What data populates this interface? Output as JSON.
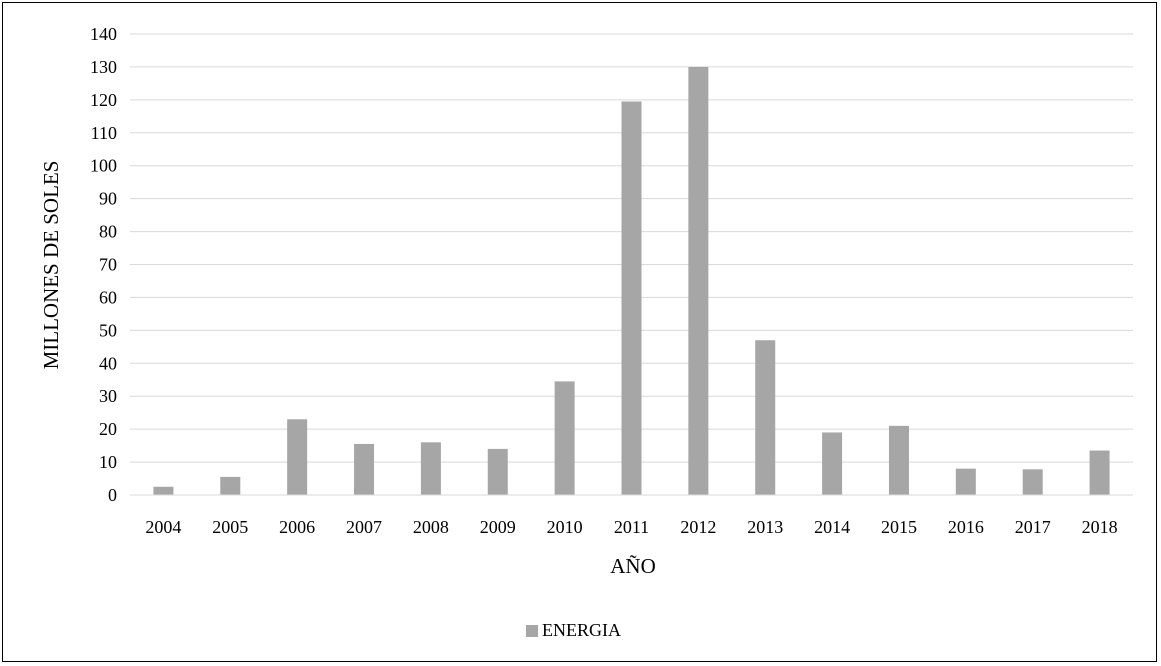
{
  "chart_data": {
    "type": "bar",
    "xlabel": "AÑO",
    "ylabel": "MILLONES DE SOLES",
    "ylim": [
      0,
      140
    ],
    "yticks": [
      "0",
      "10",
      "20",
      "30",
      "40",
      "50",
      "60",
      "70",
      "80",
      "90",
      "100",
      "110",
      "120",
      "130",
      "140"
    ],
    "categories": [
      "2004",
      "2005",
      "2006",
      "2007",
      "2008",
      "2009",
      "2010",
      "2011",
      "2012",
      "2013",
      "2014",
      "2015",
      "2016",
      "2017",
      "2018"
    ],
    "series": [
      {
        "name": "ENERGIA",
        "color": "#a6a6a6",
        "values": [
          2.5,
          5.5,
          23,
          15.5,
          16,
          14,
          34.5,
          119.5,
          130,
          47,
          19,
          21,
          8,
          7.8,
          13.5
        ]
      }
    ],
    "grid": true,
    "gridColor": "#d9d9d9",
    "legend_position": "bottom"
  }
}
